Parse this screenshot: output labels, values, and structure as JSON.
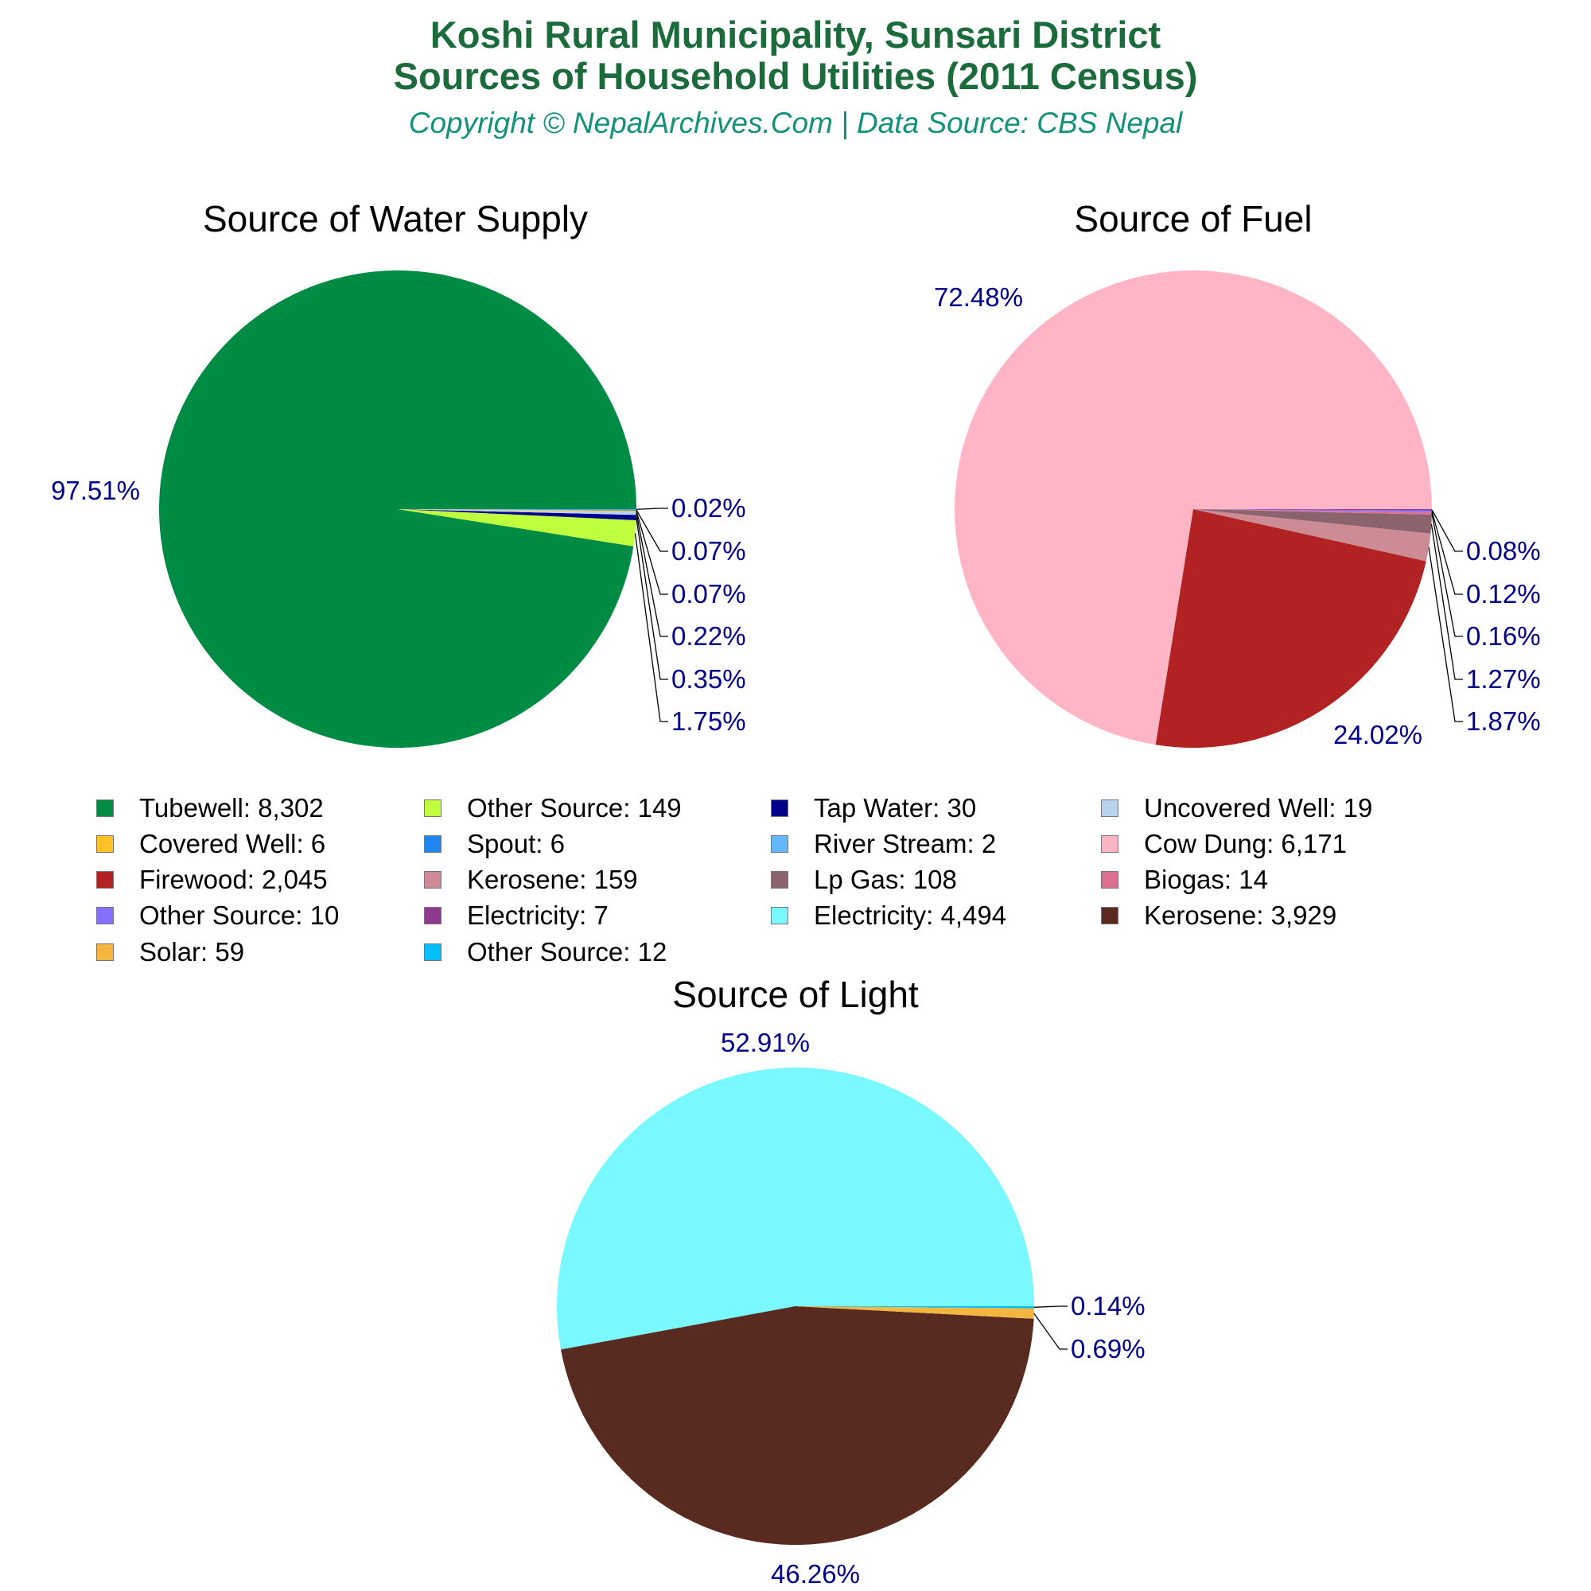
{
  "header": {
    "title_line1": "Koshi Rural Municipality, Sunsari District",
    "title_line2": "Sources of Household Utilities (2011 Census)",
    "subtitle": "Copyright © NepalArchives.Com | Data Source: CBS Nepal",
    "title_color": "#1b6b3d",
    "subtitle_color": "#14917a",
    "label_color": "#00008b"
  },
  "chart_data": [
    {
      "type": "pie",
      "title": "Source of Water Supply",
      "slices": [
        {
          "label": "Tubewell",
          "value": 8302,
          "percent": "97.51%",
          "color": "#008b45"
        },
        {
          "label": "Other Source",
          "value": 149,
          "percent": "1.75%",
          "color": "#c0ff3e"
        },
        {
          "label": "Tap Water",
          "value": 30,
          "percent": "0.35%",
          "color": "#00008b"
        },
        {
          "label": "Uncovered Well",
          "value": 19,
          "percent": "0.22%",
          "color": "#b9d3ee"
        },
        {
          "label": "Covered Well",
          "value": 6,
          "percent": "0.07%",
          "color": "#ffc125"
        },
        {
          "label": "Spout",
          "value": 6,
          "percent": "0.07%",
          "color": "#1e86ee"
        },
        {
          "label": "River Stream",
          "value": 2,
          "percent": "0.02%",
          "color": "#63b8ff"
        }
      ]
    },
    {
      "type": "pie",
      "title": "Source of Fuel",
      "slices": [
        {
          "label": "Cow Dung",
          "value": 6171,
          "percent": "72.48%",
          "color": "#ffb5c5"
        },
        {
          "label": "Firewood",
          "value": 2045,
          "percent": "24.02%",
          "color": "#b22222"
        },
        {
          "label": "Kerosene",
          "value": 159,
          "percent": "1.87%",
          "color": "#cd8c95"
        },
        {
          "label": "Lp Gas",
          "value": 108,
          "percent": "1.27%",
          "color": "#8b636c"
        },
        {
          "label": "Biogas",
          "value": 14,
          "percent": "0.16%",
          "color": "#db7093"
        },
        {
          "label": "Other Source",
          "value": 10,
          "percent": "0.12%",
          "color": "#8470ff"
        },
        {
          "label": "Electricity",
          "value": 7,
          "percent": "0.08%",
          "color": "#8e388e"
        }
      ]
    },
    {
      "type": "pie",
      "title": "Source of Light",
      "slices": [
        {
          "label": "Electricity",
          "value": 4494,
          "percent": "52.91%",
          "color": "#7af8ff"
        },
        {
          "label": "Kerosene",
          "value": 3929,
          "percent": "46.26%",
          "color": "#582a20"
        },
        {
          "label": "Solar",
          "value": 59,
          "percent": "0.69%",
          "color": "#f5b63f"
        },
        {
          "label": "Other Source",
          "value": 12,
          "percent": "0.14%",
          "color": "#00bfff"
        }
      ]
    }
  ],
  "legend": [
    {
      "text": "Tubewell: 8,302",
      "color": "#008b45"
    },
    {
      "text": "Other Source: 149",
      "color": "#c0ff3e"
    },
    {
      "text": "Tap Water: 30",
      "color": "#00008b"
    },
    {
      "text": "Uncovered Well: 19",
      "color": "#b9d3ee"
    },
    {
      "text": "Covered Well: 6",
      "color": "#ffc125"
    },
    {
      "text": "Spout: 6",
      "color": "#1e86ee"
    },
    {
      "text": "River Stream: 2",
      "color": "#63b8ff"
    },
    {
      "text": "Cow Dung: 6,171",
      "color": "#ffb5c5"
    },
    {
      "text": "Firewood: 2,045",
      "color": "#b22222"
    },
    {
      "text": "Kerosene: 159",
      "color": "#cd8c95"
    },
    {
      "text": "Lp Gas: 108",
      "color": "#8b636c"
    },
    {
      "text": "Biogas: 14",
      "color": "#db7093"
    },
    {
      "text": "Other Source: 10",
      "color": "#8470ff"
    },
    {
      "text": "Electricity: 7",
      "color": "#8e388e"
    },
    {
      "text": "Electricity: 4,494",
      "color": "#7af8ff"
    },
    {
      "text": "Kerosene: 3,929",
      "color": "#582a20"
    },
    {
      "text": "Solar: 59",
      "color": "#f5b63f"
    },
    {
      "text": "Other Source: 12",
      "color": "#00bfff"
    }
  ]
}
